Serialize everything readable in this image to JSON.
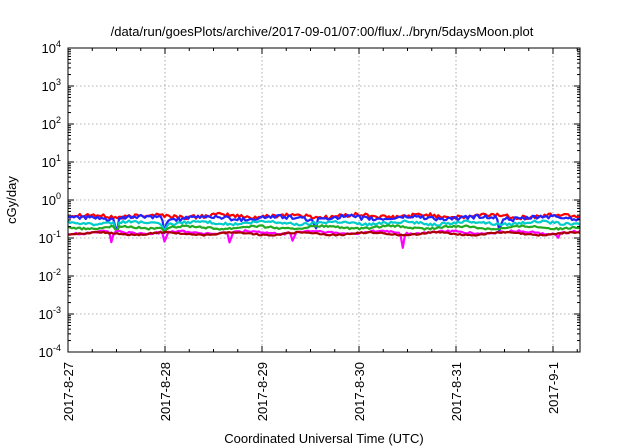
{
  "chart_data": {
    "type": "line",
    "title": "/data/run/goesPlots/archive/2017-09-01/07:00/flux/../bryn/5daysMoon.plot",
    "xlabel": "Coordinated Universal Time (UTC)",
    "ylabel": "cGy/day",
    "yscale": "log",
    "ylim": [
      0.0001,
      10000
    ],
    "xlim": [
      "2017-08-27 00:00",
      "2017-09-01 07:00"
    ],
    "grid": true,
    "x_ticks": [
      "2017-8-27",
      "2017-8-28",
      "2017-8-29",
      "2017-8-30",
      "2017-8-31",
      "2017-9-1"
    ],
    "y_ticks": [
      {
        "value": 0.0001,
        "base": "10",
        "exp": "-4"
      },
      {
        "value": 0.001,
        "base": "10",
        "exp": "-3"
      },
      {
        "value": 0.01,
        "base": "10",
        "exp": "-2"
      },
      {
        "value": 0.1,
        "base": "10",
        "exp": "-1"
      },
      {
        "value": 1,
        "base": "10",
        "exp": "0"
      },
      {
        "value": 10,
        "base": "10",
        "exp": "1"
      },
      {
        "value": 100,
        "base": "10",
        "exp": "2"
      },
      {
        "value": 1000,
        "base": "10",
        "exp": "3"
      },
      {
        "value": 10000,
        "base": "10",
        "exp": "4"
      }
    ],
    "series": [
      {
        "color": "#ff0000",
        "base": 0.38,
        "noise": 0.12,
        "dips": []
      },
      {
        "color": "#2222ff",
        "base": 0.34,
        "noise": 0.12,
        "dips": [
          [
            0.5,
            0.12
          ],
          [
            1.0,
            0.12
          ],
          [
            2.55,
            0.15
          ],
          [
            4.45,
            0.14
          ]
        ]
      },
      {
        "color": "#00cccc",
        "base": 0.25,
        "noise": 0.08,
        "dips": [
          [
            0.5,
            0.12
          ],
          [
            1.0,
            0.14
          ]
        ]
      },
      {
        "color": "#22aa22",
        "base": 0.19,
        "noise": 0.06,
        "dips": [
          [
            0.5,
            0.14
          ],
          [
            1.0,
            0.14
          ]
        ]
      },
      {
        "color": "#ff00ff",
        "base": 0.14,
        "noise": 0.06,
        "dips": [
          [
            0.45,
            0.075
          ],
          [
            1.0,
            0.075
          ],
          [
            1.67,
            0.07
          ],
          [
            2.32,
            0.08
          ],
          [
            3.45,
            0.055
          ],
          [
            5.05,
            0.1
          ]
        ]
      },
      {
        "color": "#aa0000",
        "base": 0.13,
        "noise": 0.04,
        "dips": []
      }
    ]
  }
}
